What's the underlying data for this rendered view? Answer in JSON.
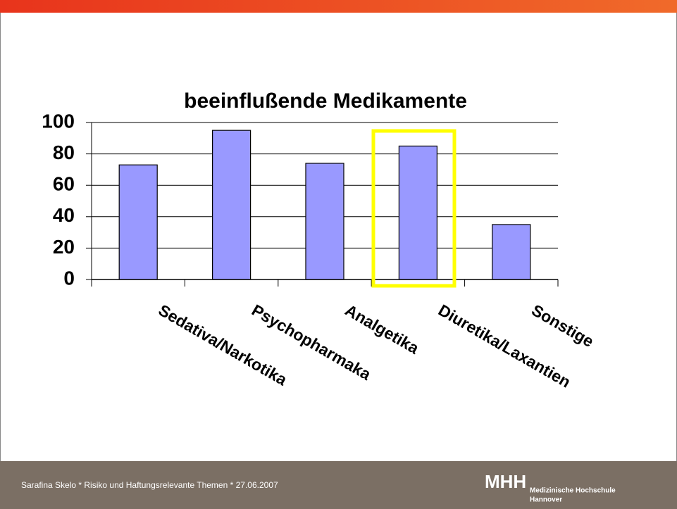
{
  "chart_data": {
    "type": "bar",
    "title": "beeinflußende Medikamente",
    "categories": [
      "Sedativa/Narkotika",
      "Psychopharmaka",
      "Analgetika",
      "Diuretika/Laxantien",
      "Sonstige"
    ],
    "values": [
      73,
      95,
      74,
      85,
      35
    ],
    "color": "#9999ff",
    "ylim": [
      0,
      100
    ],
    "yticks": [
      0,
      20,
      40,
      60,
      80,
      100
    ],
    "grid": true
  },
  "footer": {
    "text": "Sarafina Skelo * Risiko und Haftungsrelevante Themen * 27.06.2007",
    "logo": "MHH",
    "logo_sub": "Medizinische Hochschule",
    "logo_sub2": "Hannover"
  }
}
